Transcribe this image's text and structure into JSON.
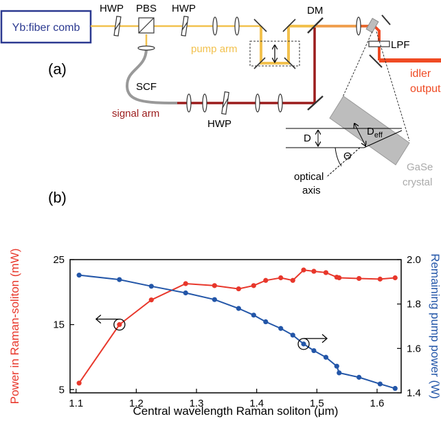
{
  "panel_a": {
    "label": "(a)",
    "source": "Yb:fiber comb",
    "hwp_left": "HWP",
    "pbs": "PBS",
    "hwp_right": "HWP",
    "dm": "DM",
    "pump_arm": "pump arm",
    "scf": "SCF",
    "signal_arm": "signal arm",
    "hwp_signal": "HWP",
    "lpf": "LPF",
    "idler_1": "idler",
    "idler_2": "output",
    "d": "D",
    "d_eff_main": "D",
    "d_eff_sub": "eff",
    "theta": "Θ",
    "optical_axis_1": "optical",
    "optical_axis_2": "axis",
    "crystal_1": "GaSe",
    "crystal_2": "crystal",
    "colors": {
      "source_box": "#2b3990",
      "pump": "#f2c14e",
      "signal": "#9b1c1c",
      "idler": "#ef4a23",
      "scf": "#999999",
      "crystal": "#bdbdbd"
    }
  },
  "panel_b": {
    "label": "(b)"
  },
  "chart_data": {
    "type": "line",
    "xlabel": "Central wavelength Raman soliton (μm)",
    "ylabel_left": "Power in Raman-soliton (mW)",
    "ylabel_right": "Remaining pump power (W)",
    "xlim": [
      1.09,
      1.64
    ],
    "x_ticks": [
      "1.1",
      "1.2",
      "1.3",
      "1.4",
      "1.5",
      "1.6"
    ],
    "ylim_left": [
      4.5,
      25
    ],
    "y_left_ticks": [
      "5",
      "15",
      "25"
    ],
    "ylim_right": [
      1.4,
      2.0
    ],
    "y_right_ticks": [
      "1.4",
      "1.6",
      "1.8",
      "2.0"
    ],
    "grid": false,
    "series": [
      {
        "axis": "left",
        "color": "#e8372b",
        "x": [
          1.105,
          1.172,
          1.225,
          1.282,
          1.33,
          1.37,
          1.395,
          1.415,
          1.44,
          1.46,
          1.478,
          1.495,
          1.515,
          1.533,
          1.537,
          1.57,
          1.605,
          1.63
        ],
        "values": [
          6.0,
          15.0,
          18.8,
          21.3,
          21.0,
          20.5,
          21.0,
          21.8,
          22.2,
          21.8,
          23.4,
          23.2,
          23.0,
          22.3,
          22.2,
          22.1,
          22.0,
          22.2
        ]
      },
      {
        "axis": "right",
        "color": "#2356a8",
        "x": [
          1.105,
          1.172,
          1.225,
          1.282,
          1.33,
          1.37,
          1.395,
          1.415,
          1.44,
          1.46,
          1.478,
          1.495,
          1.515,
          1.533,
          1.537,
          1.57,
          1.605,
          1.63
        ],
        "values": [
          1.93,
          1.91,
          1.88,
          1.85,
          1.82,
          1.78,
          1.75,
          1.72,
          1.69,
          1.66,
          1.62,
          1.59,
          1.56,
          1.52,
          1.49,
          1.47,
          1.44,
          1.42
        ]
      }
    ],
    "markers": [
      {
        "series": 0,
        "point": 1,
        "arrow": "left"
      },
      {
        "series": 1,
        "point": 10,
        "arrow": "right"
      }
    ]
  }
}
